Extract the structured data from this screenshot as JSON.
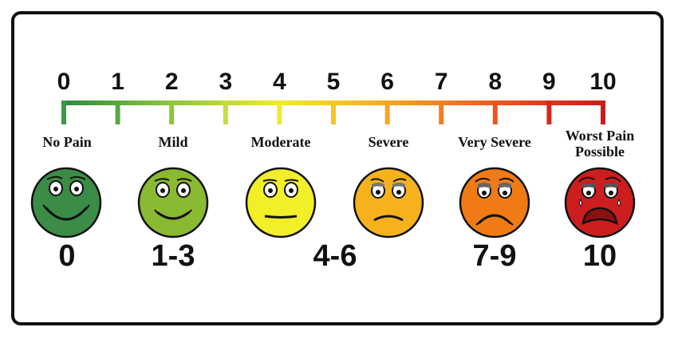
{
  "scale": {
    "ticks": [
      "0",
      "1",
      "2",
      "3",
      "4",
      "5",
      "6",
      "7",
      "8",
      "9",
      "10"
    ],
    "colors": [
      "#3a9a47",
      "#5aa845",
      "#8cc63f",
      "#c8dc3c",
      "#f0e930",
      "#f6c526",
      "#f5a623",
      "#f07e22",
      "#e8561e",
      "#d9261c",
      "#cc1b1b"
    ]
  },
  "levels": [
    {
      "label": "No Pain",
      "color": "#3a8c46",
      "mood": "happy"
    },
    {
      "label": "Mild",
      "color": "#8ab932",
      "mood": "smile"
    },
    {
      "label": "Moderate",
      "color": "#f2ee27",
      "mood": "neutral"
    },
    {
      "label": "Severe",
      "color": "#f6b21c",
      "mood": "frown"
    },
    {
      "label": "Very Severe",
      "color": "#f07b14",
      "mood": "sad"
    },
    {
      "label": "Worst Pain Possible",
      "label_line1": "Worst Pain",
      "label_line2": "Possible",
      "color": "#cc1e1e",
      "mood": "crying"
    }
  ],
  "ranges": [
    "0",
    "1-3",
    "4-6",
    "7-9",
    "10"
  ]
}
